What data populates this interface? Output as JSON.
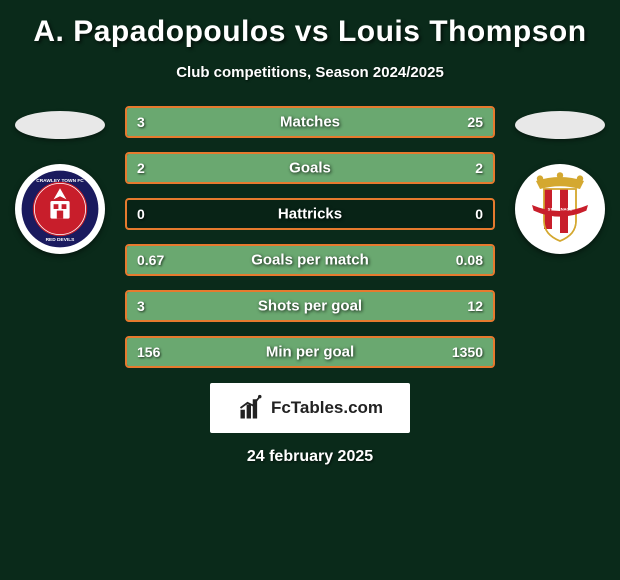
{
  "title": "A. Papadopoulos vs Louis Thompson",
  "subtitle": "Club competitions, Season 2024/2025",
  "date": "24 february 2025",
  "logo_text": "FcTables.com",
  "colors": {
    "background": "#0a2a1a",
    "bar_border": "#e67a2e",
    "bar_fill": "#6aa870",
    "text": "#ffffff",
    "logo_bg": "#ffffff",
    "logo_text": "#222222"
  },
  "left_badge": {
    "name": "crawley-town",
    "ring_outer": "#1a1a5e",
    "ring_text": "#ffffff",
    "center_bg": "#c81e2b",
    "accent": "#ffffff"
  },
  "right_badge": {
    "name": "stevenage",
    "stripe1": "#c81e2b",
    "stripe2": "#ffffff",
    "gold": "#d4a830",
    "sash": "#c81e2b"
  },
  "stats": [
    {
      "label": "Matches",
      "left_val": "3",
      "right_val": "25",
      "left_pct": 10.7,
      "right_pct": 89.3
    },
    {
      "label": "Goals",
      "left_val": "2",
      "right_val": "2",
      "left_pct": 50.0,
      "right_pct": 50.0
    },
    {
      "label": "Hattricks",
      "left_val": "0",
      "right_val": "0",
      "left_pct": 0.0,
      "right_pct": 0.0
    },
    {
      "label": "Goals per match",
      "left_val": "0.67",
      "right_val": "0.08",
      "left_pct": 89.3,
      "right_pct": 10.7
    },
    {
      "label": "Shots per goal",
      "left_val": "3",
      "right_val": "12",
      "left_pct": 20.0,
      "right_pct": 80.0
    },
    {
      "label": "Min per goal",
      "left_val": "156",
      "right_val": "1350",
      "left_pct": 10.4,
      "right_pct": 89.6
    }
  ]
}
